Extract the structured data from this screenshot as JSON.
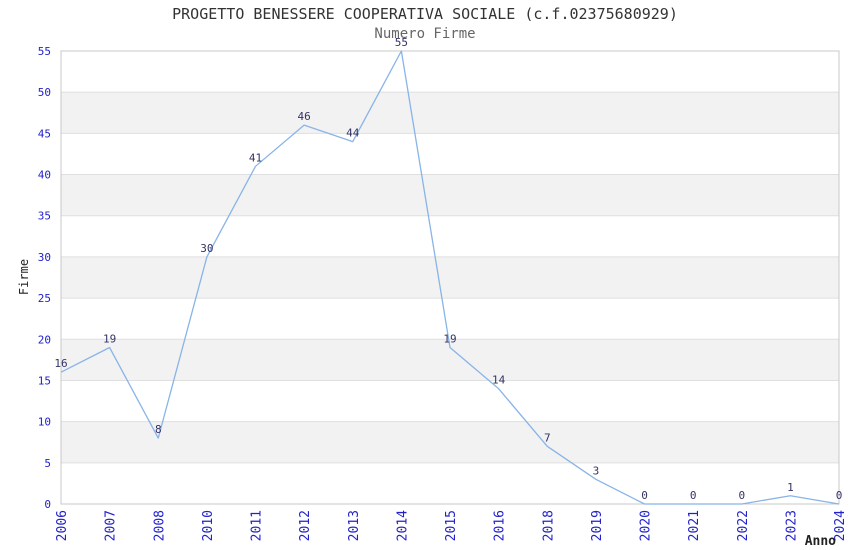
{
  "chart_data": {
    "type": "line",
    "title": "PROGETTO BENESSERE COOPERATIVA SOCIALE (c.f.02375680929)",
    "subtitle": "Numero Firme",
    "xlabel": "Anno",
    "ylabel": "Firme",
    "categories": [
      "2006",
      "2007",
      "2008",
      "2010",
      "2011",
      "2012",
      "2013",
      "2014",
      "2015",
      "2016",
      "2018",
      "2019",
      "2020",
      "2021",
      "2022",
      "2023",
      "2024"
    ],
    "values": [
      16,
      19,
      8,
      30,
      41,
      46,
      44,
      55,
      19,
      14,
      7,
      3,
      0,
      0,
      0,
      1,
      0
    ],
    "ylim": [
      0,
      55
    ],
    "ytick_step": 5,
    "grid": true,
    "legend": "none",
    "banding": "alternating horizontal 5-unit bands, gray on 5-10, 15-20, 25-30, 35-40, 45-50",
    "colors": {
      "line": "#88b4e8",
      "tick_labels": "#2222cc",
      "data_labels": "#333366",
      "band": "#f2f2f2",
      "gridline": "#dfdfdf",
      "border": "#c8c8c8",
      "title": "#333333",
      "subtitle": "#666666",
      "axis_titles": "#222222"
    }
  }
}
